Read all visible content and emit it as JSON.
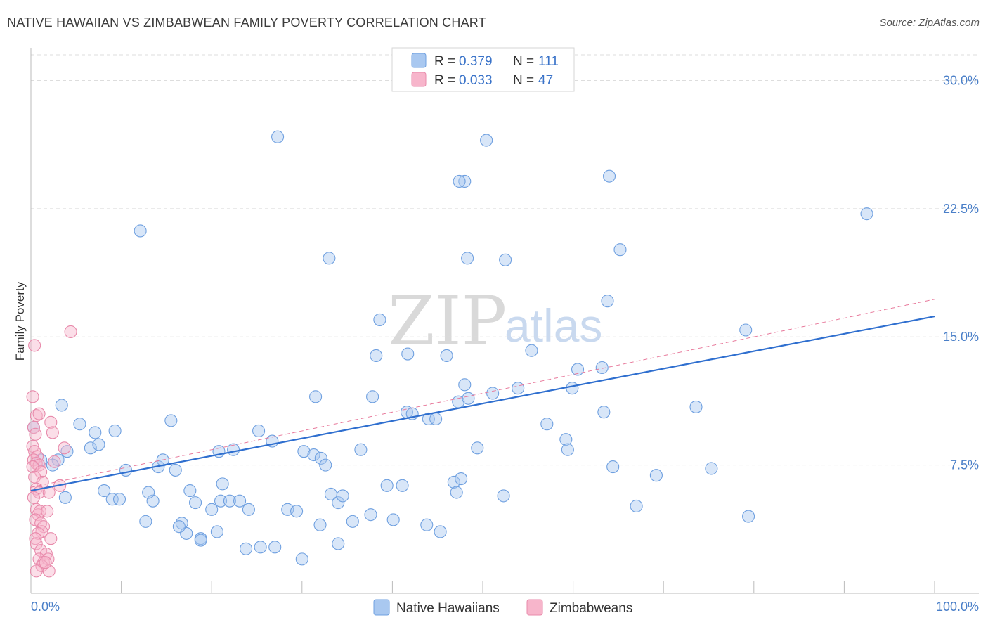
{
  "header": {
    "title": "NATIVE HAWAIIAN VS ZIMBABWEAN FAMILY POVERTY CORRELATION CHART",
    "source": "Source: ZipAtlas.com"
  },
  "watermark": {
    "zip": "ZIP",
    "atlas": "atlas"
  },
  "legend": {
    "r_label": "R =",
    "n_label": "N =",
    "rows": [
      {
        "r": "0.379",
        "n": "111",
        "color": "#a9c8f0",
        "stroke": "#6fa0e0"
      },
      {
        "r": "0.033",
        "n": "47",
        "color": "#f7b5cb",
        "stroke": "#e88aab"
      }
    ]
  },
  "chart_data": {
    "type": "scatter",
    "title": "NATIVE HAWAIIAN VS ZIMBABWEAN FAMILY POVERTY CORRELATION CHART",
    "xlabel": "",
    "ylabel": "Family Poverty",
    "xlim": [
      0,
      100
    ],
    "ylim": [
      0,
      31.5
    ],
    "x_tick_labels": {
      "left": "0.0%",
      "right": "100.0%"
    },
    "y_ticks": [
      {
        "value": 7.5,
        "label": "7.5%"
      },
      {
        "value": 15.0,
        "label": "15.0%"
      },
      {
        "value": 22.5,
        "label": "22.5%"
      },
      {
        "value": 30.0,
        "label": "30.0%"
      }
    ],
    "series": [
      {
        "name": "Native Hawaiians",
        "color": "#a9c8f0",
        "stroke": "#6fa0e0",
        "trend": {
          "x0": 0,
          "y0": 6.0,
          "x1": 100,
          "y1": 16.2,
          "color": "#2f6fcf"
        },
        "points": [
          [
            0.3,
            9.7
          ],
          [
            3.4,
            11.0
          ],
          [
            5.4,
            9.9
          ],
          [
            7.1,
            9.4
          ],
          [
            9.3,
            9.5
          ],
          [
            12.1,
            21.2
          ],
          [
            13.5,
            5.4
          ],
          [
            10.5,
            7.2
          ],
          [
            8.1,
            6.0
          ],
          [
            4.0,
            8.3
          ],
          [
            3.0,
            7.8
          ],
          [
            2.4,
            7.5
          ],
          [
            1.1,
            7.8
          ],
          [
            3.8,
            5.6
          ],
          [
            6.6,
            8.5
          ],
          [
            7.5,
            8.7
          ],
          [
            9.0,
            5.5
          ],
          [
            9.8,
            5.5
          ],
          [
            13.0,
            5.9
          ],
          [
            14.1,
            7.4
          ],
          [
            14.6,
            7.8
          ],
          [
            12.7,
            4.2
          ],
          [
            15.5,
            10.1
          ],
          [
            16.0,
            7.2
          ],
          [
            16.7,
            4.1
          ],
          [
            17.6,
            6.0
          ],
          [
            18.8,
            3.2
          ],
          [
            18.2,
            5.3
          ],
          [
            17.2,
            3.5
          ],
          [
            16.4,
            3.9
          ],
          [
            18.8,
            3.1
          ],
          [
            21.2,
            6.4
          ],
          [
            21.0,
            5.4
          ],
          [
            22.0,
            5.4
          ],
          [
            23.1,
            5.4
          ],
          [
            24.1,
            4.9
          ],
          [
            22.4,
            8.4
          ],
          [
            20.6,
            3.6
          ],
          [
            23.8,
            2.6
          ],
          [
            25.4,
            2.7
          ],
          [
            20.8,
            8.3
          ],
          [
            26.7,
            8.9
          ],
          [
            27.0,
            2.7
          ],
          [
            28.4,
            4.9
          ],
          [
            29.4,
            4.8
          ],
          [
            30.0,
            2.0
          ],
          [
            30.2,
            8.3
          ],
          [
            31.3,
            8.1
          ],
          [
            32.1,
            7.9
          ],
          [
            32.6,
            7.5
          ],
          [
            32.0,
            4.0
          ],
          [
            33.2,
            5.8
          ],
          [
            34.0,
            5.3
          ],
          [
            34.5,
            5.7
          ],
          [
            34.0,
            2.9
          ],
          [
            35.6,
            4.2
          ],
          [
            36.5,
            8.4
          ],
          [
            37.6,
            4.6
          ],
          [
            38.2,
            13.9
          ],
          [
            38.6,
            16.0
          ],
          [
            37.8,
            11.5
          ],
          [
            39.4,
            6.3
          ],
          [
            40.1,
            4.3
          ],
          [
            41.1,
            6.3
          ],
          [
            41.6,
            10.6
          ],
          [
            41.7,
            14.0
          ],
          [
            42.2,
            10.5
          ],
          [
            44.0,
            10.2
          ],
          [
            44.8,
            10.2
          ],
          [
            46.8,
            6.5
          ],
          [
            46.0,
            13.9
          ],
          [
            47.3,
            11.2
          ],
          [
            48.0,
            12.2
          ],
          [
            48.4,
            11.4
          ],
          [
            47.6,
            6.7
          ],
          [
            47.1,
            5.9
          ],
          [
            48.0,
            24.1
          ],
          [
            47.4,
            24.1
          ],
          [
            49.4,
            8.5
          ],
          [
            51.1,
            11.7
          ],
          [
            50.4,
            26.5
          ],
          [
            52.5,
            19.5
          ],
          [
            48.3,
            19.6
          ],
          [
            52.3,
            5.7
          ],
          [
            53.9,
            12.0
          ],
          [
            55.4,
            14.2
          ],
          [
            57.1,
            9.9
          ],
          [
            59.2,
            9.0
          ],
          [
            59.4,
            8.4
          ],
          [
            60.5,
            13.1
          ],
          [
            63.4,
            10.6
          ],
          [
            63.8,
            17.1
          ],
          [
            63.2,
            13.2
          ],
          [
            64.4,
            7.4
          ],
          [
            64.0,
            24.4
          ],
          [
            65.2,
            20.1
          ],
          [
            67.0,
            5.1
          ],
          [
            69.2,
            6.9
          ],
          [
            73.6,
            10.9
          ],
          [
            75.3,
            7.3
          ],
          [
            79.4,
            4.5
          ],
          [
            79.1,
            15.4
          ],
          [
            92.5,
            22.2
          ],
          [
            59.9,
            12.0
          ],
          [
            27.3,
            26.7
          ],
          [
            33.0,
            19.6
          ],
          [
            20.0,
            4.9
          ],
          [
            25.2,
            9.5
          ],
          [
            45.3,
            3.6
          ],
          [
            43.8,
            4.0
          ],
          [
            31.5,
            11.5
          ]
        ]
      },
      {
        "name": "Zimbabweans",
        "color": "#f7b5cb",
        "stroke": "#e88aab",
        "trend": {
          "x0": 0,
          "y0": 6.2,
          "x1": 100,
          "y1": 17.2,
          "color": "#e87a9c"
        },
        "points": [
          [
            0.2,
            11.5
          ],
          [
            0.4,
            14.5
          ],
          [
            0.6,
            10.4
          ],
          [
            0.9,
            10.5
          ],
          [
            0.3,
            9.7
          ],
          [
            0.5,
            9.3
          ],
          [
            0.2,
            8.6
          ],
          [
            0.4,
            8.3
          ],
          [
            0.7,
            8.0
          ],
          [
            0.3,
            7.8
          ],
          [
            0.6,
            7.6
          ],
          [
            0.9,
            7.5
          ],
          [
            0.2,
            7.4
          ],
          [
            1.1,
            7.1
          ],
          [
            0.4,
            6.8
          ],
          [
            1.3,
            6.5
          ],
          [
            0.6,
            6.1
          ],
          [
            0.9,
            5.9
          ],
          [
            0.3,
            5.6
          ],
          [
            0.6,
            4.9
          ],
          [
            0.8,
            4.6
          ],
          [
            1.0,
            4.8
          ],
          [
            1.8,
            4.8
          ],
          [
            0.5,
            4.3
          ],
          [
            1.1,
            4.1
          ],
          [
            1.4,
            3.9
          ],
          [
            1.2,
            3.6
          ],
          [
            0.8,
            3.5
          ],
          [
            0.5,
            3.2
          ],
          [
            2.2,
            3.2
          ],
          [
            0.6,
            2.9
          ],
          [
            1.1,
            2.5
          ],
          [
            1.7,
            2.3
          ],
          [
            0.9,
            2.0
          ],
          [
            1.4,
            1.8
          ],
          [
            1.9,
            2.0
          ],
          [
            1.2,
            1.6
          ],
          [
            0.6,
            1.3
          ],
          [
            2.0,
            1.3
          ],
          [
            1.6,
            1.8
          ],
          [
            2.0,
            5.9
          ],
          [
            2.2,
            10.0
          ],
          [
            3.2,
            6.3
          ],
          [
            4.4,
            15.3
          ],
          [
            2.4,
            9.4
          ],
          [
            3.7,
            8.5
          ],
          [
            2.6,
            7.7
          ]
        ]
      }
    ]
  },
  "bottom_legend": [
    {
      "label": "Native Hawaiians",
      "color": "#a9c8f0",
      "stroke": "#6fa0e0"
    },
    {
      "label": "Zimbabweans",
      "color": "#f7b5cb",
      "stroke": "#e88aab"
    }
  ]
}
